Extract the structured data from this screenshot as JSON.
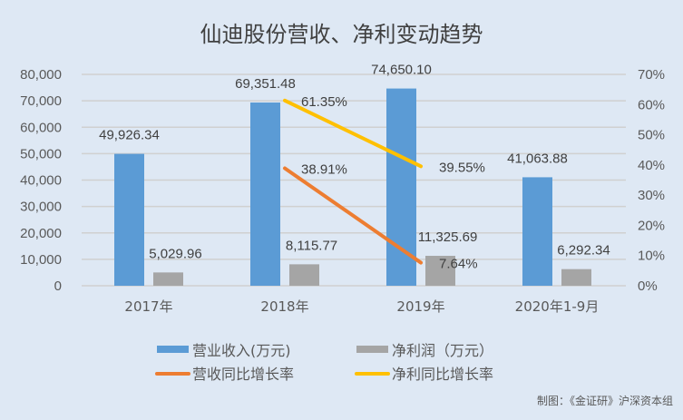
{
  "chart_data": {
    "type": "bar+line",
    "title": "仙迪股份营收、净利变动趋势",
    "categories": [
      "2017年",
      "2018年",
      "2019年",
      "2020年1-9月"
    ],
    "left_axis": {
      "ylim": [
        0,
        80000
      ],
      "ticks": [
        "0",
        "10,000",
        "20,000",
        "30,000",
        "40,000",
        "50,000",
        "60,000",
        "70,000",
        "80,000"
      ]
    },
    "right_axis": {
      "ylim": [
        0,
        70
      ],
      "ticks": [
        "0%",
        "10%",
        "20%",
        "30%",
        "40%",
        "50%",
        "60%",
        "70%"
      ]
    },
    "bar_series": [
      {
        "name": "营业收入(万元)",
        "color": "#5B9BD5",
        "values": [
          49926.34,
          69351.48,
          74650.1,
          41063.88
        ],
        "labels": [
          "49,926.34",
          "69,351.48",
          "74,650.10",
          "41,063.88"
        ]
      },
      {
        "name": "净利润（万元）",
        "color": "#A5A5A5",
        "values": [
          5029.96,
          8115.77,
          11325.69,
          6292.34
        ],
        "labels": [
          "5,029.96",
          "8,115.77",
          "11,325.69",
          "6,292.34"
        ]
      }
    ],
    "line_series": [
      {
        "name": "营收同比增长率",
        "color": "#ED7D31",
        "points": [
          {
            "cat": 1,
            "value": 38.91,
            "label": "38.91%"
          },
          {
            "cat": 2,
            "value": 7.64,
            "label": "7.64%"
          }
        ]
      },
      {
        "name": "净利同比增长率",
        "color": "#FFC000",
        "points": [
          {
            "cat": 1,
            "value": 61.35,
            "label": "61.35%"
          },
          {
            "cat": 2,
            "value": 39.55,
            "label": "39.55%"
          }
        ]
      }
    ],
    "grid": true,
    "legend_position": "bottom"
  },
  "source": "制图：《金证研》沪深资本组"
}
